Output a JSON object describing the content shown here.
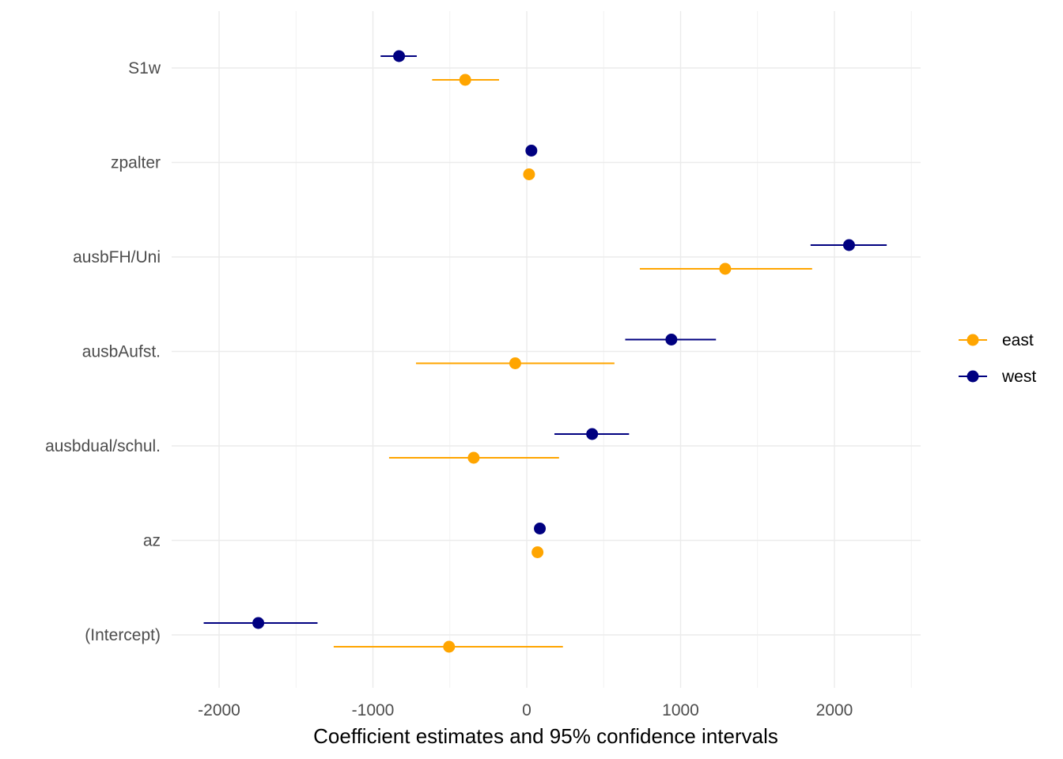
{
  "chart_data": {
    "type": "scatter",
    "subtype": "coefficient-plot",
    "title": "",
    "xlabel": "Coefficient estimates and 95% confidence intervals",
    "ylabel": "",
    "xlim": [
      -2300,
      2550
    ],
    "x_ticks": [
      -2000,
      -1000,
      0,
      1000,
      2000
    ],
    "x_tick_labels": [
      "-2000",
      "-1000",
      "0",
      "1000",
      "2000"
    ],
    "categories": [
      "S1w",
      "zpalter",
      "ausbFH/Uni",
      "ausbAufst.",
      "ausbdual/schul.",
      "az",
      "(Intercept)"
    ],
    "grid": true,
    "legend_position": "right",
    "series": [
      {
        "name": "east",
        "color": "#FFA500",
        "estimates": [
          -400,
          15,
          1290,
          -75,
          -345,
          70,
          -505
        ],
        "lower": [
          -615,
          15,
          735,
          -720,
          -895,
          70,
          -1255
        ],
        "upper": [
          -180,
          15,
          1855,
          570,
          210,
          70,
          235
        ]
      },
      {
        "name": "west",
        "color": "#000080",
        "estimates": [
          -830,
          30,
          2095,
          940,
          425,
          85,
          -1745
        ],
        "lower": [
          -950,
          30,
          1845,
          640,
          180,
          85,
          -2100
        ],
        "upper": [
          -715,
          30,
          2340,
          1230,
          665,
          85,
          -1360
        ]
      }
    ]
  }
}
